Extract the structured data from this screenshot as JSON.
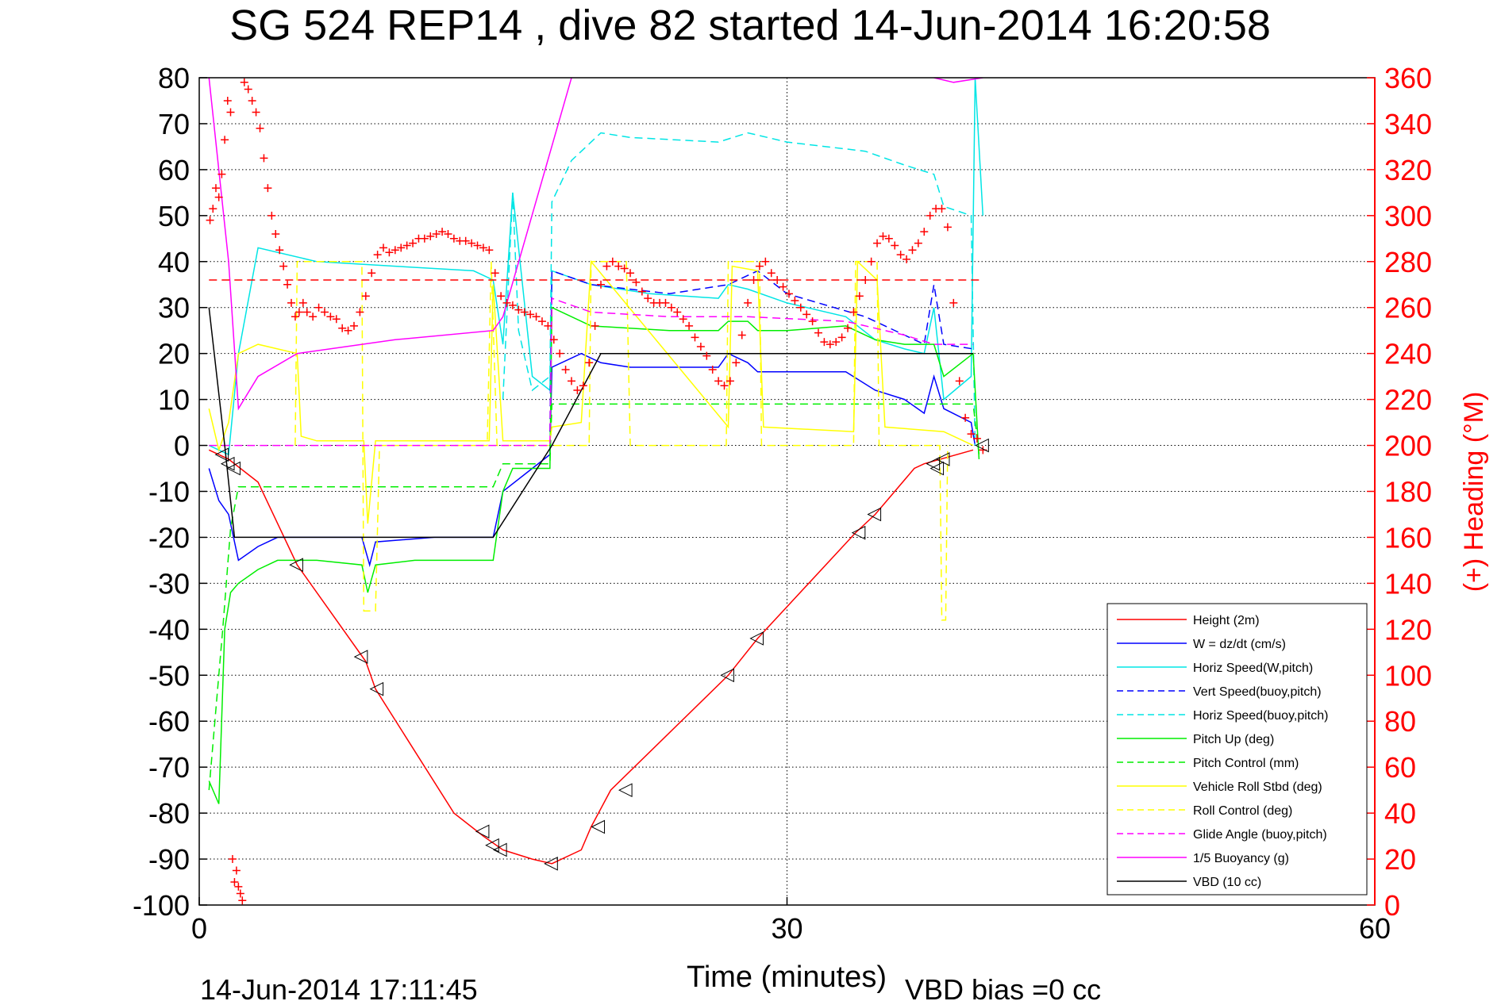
{
  "chart_data": {
    "type": "line",
    "title": "SG 524   REP14  , dive 82 started 14-Jun-2014 16:20:58",
    "xlabel": "Time (minutes)",
    "ylabel_right": "(+) Heading (°M)",
    "footer_left": "14-Jun-2014 17:11:45",
    "footer_right": "VBD bias =0 cc",
    "xlim": [
      0,
      60
    ],
    "ylim": [
      -100,
      80
    ],
    "ylim_right": [
      0,
      360
    ],
    "x_ticks": [
      "0",
      "30",
      "60"
    ],
    "y_ticks": [
      "80",
      "70",
      "60",
      "50",
      "40",
      "30",
      "20",
      "10",
      "0",
      "-10",
      "-20",
      "-30",
      "-40",
      "-50",
      "-60",
      "-70",
      "-80",
      "-90",
      "-100"
    ],
    "y_ticks_right": [
      "360",
      "340",
      "320",
      "300",
      "280",
      "260",
      "240",
      "220",
      "200",
      "180",
      "160",
      "140",
      "120",
      "100",
      "80",
      "60",
      "40",
      "20",
      "0"
    ],
    "grid": true,
    "legend_position": "bottom-right",
    "colors": {
      "red": "#ff0000",
      "blue": "#0000ff",
      "cyan": "#00e5e5",
      "green": "#00ee00",
      "yellow": "#ffff00",
      "magenta": "#ff00ff",
      "black": "#000000",
      "heading": "#ff0000"
    },
    "series": [
      {
        "name": "Height (2m)",
        "color": "#ff0000",
        "dash": false,
        "x": [
          0.5,
          1.5,
          3,
          5,
          8.5,
          9,
          13,
          14.5,
          15.5,
          17,
          18,
          19.5,
          20,
          21,
          27,
          28.5,
          33.5,
          34.5,
          36.5,
          37,
          39.5
        ],
        "y": [
          -1,
          -3,
          -8,
          -26,
          -47,
          -53,
          -80,
          -85,
          -88,
          -90,
          -91,
          -88,
          -83,
          -75,
          -50,
          -42,
          -19,
          -15,
          -5,
          -4,
          -1
        ]
      },
      {
        "name": "W = dz/dt (cm/s)",
        "color": "#0000ff",
        "dash": false,
        "x": [
          0.5,
          1,
          1.5,
          2,
          3,
          4,
          7,
          8.3,
          8.7,
          9,
          12,
          15,
          15.5,
          17,
          17.9,
          18,
          19.5,
          20.5,
          22,
          24,
          26.5,
          27,
          28,
          28.5,
          30,
          33,
          34.5,
          36,
          37,
          37.5,
          38,
          39.4,
          39.6
        ],
        "y": [
          -5,
          -12,
          -15,
          -25,
          -22,
          -20,
          -20,
          -20,
          -26,
          -21,
          -20,
          -20,
          -10,
          -5,
          -2,
          17,
          20,
          18,
          17,
          17,
          17,
          20,
          18,
          16,
          16,
          16,
          12,
          10,
          7,
          15,
          8,
          5,
          0
        ]
      },
      {
        "name": "Horiz Speed(W,pitch)",
        "color": "#00e5e5",
        "dash": false,
        "x": [
          0.5,
          1.5,
          2,
          3,
          6,
          10,
          14,
          15,
          15.5,
          16,
          17,
          17.9,
          18,
          20,
          23,
          26.5,
          27,
          28,
          30,
          33,
          34.5,
          36,
          37,
          37.5,
          38,
          39.4,
          39.6,
          40
        ],
        "y": [
          0,
          -2,
          20,
          43,
          40,
          39,
          38,
          36,
          22,
          55,
          15,
          12,
          38,
          35,
          33,
          32,
          35,
          34,
          31,
          28,
          23,
          21,
          20,
          30,
          10,
          15,
          80,
          50
        ]
      },
      {
        "name": "Vert Speed(buoy,pitch)",
        "color": "#0000ff",
        "dash": true,
        "x": [
          17.9,
          18,
          20,
          24,
          27,
          28.5,
          30,
          34,
          36,
          37,
          37.5,
          38,
          39.5
        ],
        "y": [
          3,
          38,
          35,
          33,
          35,
          38,
          33,
          28,
          24,
          22,
          35,
          22,
          21
        ]
      },
      {
        "name": "Horiz Speed(buoy,pitch)",
        "color": "#00e5e5",
        "dash": true,
        "x": [
          15.5,
          16,
          16.3,
          17,
          17.9,
          18,
          19,
          20.5,
          22,
          26.5,
          28,
          30,
          34,
          36,
          37.5,
          38,
          39.4,
          39.6
        ],
        "y": [
          10,
          55,
          25,
          12,
          15,
          53,
          62,
          68,
          67,
          66,
          68,
          66,
          64,
          61,
          59,
          52,
          50,
          0
        ]
      },
      {
        "name": "Pitch Up (deg)",
        "color": "#00ee00",
        "dash": false,
        "x": [
          0.5,
          1,
          1.3,
          1.6,
          2,
          3,
          4,
          6,
          8.3,
          8.6,
          9,
          11,
          15,
          15.5,
          16,
          17.9,
          18,
          20,
          24,
          26.5,
          27,
          28,
          28.5,
          30,
          33,
          34.5,
          36,
          37.5,
          38,
          39.5,
          39.8
        ],
        "y": [
          -73,
          -78,
          -40,
          -32,
          -30,
          -27,
          -25,
          -25,
          -26,
          -32,
          -26,
          -25,
          -25,
          -10,
          -5,
          -5,
          30,
          26,
          25,
          25,
          27,
          27,
          25,
          25,
          26,
          23,
          22,
          22,
          15,
          20,
          -3
        ]
      },
      {
        "name": "Pitch Control (mm)",
        "color": "#00ee00",
        "dash": true,
        "x": [
          0.5,
          1.2,
          1.6,
          2,
          15,
          15.5,
          17.9,
          18,
          20,
          39.5,
          39.8
        ],
        "y": [
          -75,
          -40,
          -18,
          -9,
          -9,
          -4,
          -4,
          9,
          9,
          9,
          -2
        ]
      },
      {
        "name": "Vehicle Roll Stbd (deg)",
        "color": "#ffff00",
        "dash": false,
        "x": [
          0.5,
          1,
          1.5,
          2,
          3,
          4,
          5,
          5.2,
          6,
          8.4,
          8.6,
          9,
          14.8,
          15,
          15.5,
          17.9,
          18,
          19.5,
          20,
          27,
          27.2,
          28.5,
          28.8,
          33.4,
          33.6,
          34.6,
          35,
          38,
          39.5
        ],
        "y": [
          8,
          -1,
          5,
          20,
          22,
          21,
          20,
          2,
          1,
          1,
          -17,
          1,
          1,
          35,
          1,
          1,
          4,
          5,
          40,
          4,
          39,
          38,
          4,
          3,
          40,
          36,
          4,
          3,
          0
        ]
      },
      {
        "name": "Roll Control (deg)",
        "color": "#ffff00",
        "dash": true,
        "x": [
          4.9,
          5,
          8.3,
          8.4,
          9,
          9.2,
          14.7,
          14.9,
          15.2,
          19.9,
          20,
          21.8,
          22,
          26.9,
          27,
          28.6,
          28.7,
          33.4,
          33.5,
          34.6,
          34.7,
          37.8,
          37.9,
          38.1,
          38.2
        ],
        "y": [
          0,
          40,
          40,
          -36,
          -36,
          0,
          0,
          40,
          0,
          0,
          40,
          40,
          0,
          0,
          40,
          40,
          0,
          0,
          40,
          40,
          0,
          0,
          -38,
          -38,
          0
        ]
      },
      {
        "name": "Glide Angle (buoy,pitch)",
        "color": "#ff00ff",
        "dash": true,
        "x": [
          0.5,
          17.9,
          18,
          20,
          24,
          28,
          33,
          36,
          37.5,
          39.5
        ],
        "y": [
          0,
          0,
          32,
          29,
          28,
          28,
          27,
          24,
          22,
          22
        ]
      },
      {
        "name": "1/5 Buoyancy (g)",
        "color": "#ff00ff",
        "dash": false,
        "x": [
          0.5,
          1.5,
          2,
          3,
          5,
          10,
          15,
          15.5,
          19
        ],
        "y": [
          80,
          40,
          8,
          15,
          20,
          23,
          25,
          28,
          80
        ]
      },
      {
        "name": "VBD (10 cc)",
        "color": "#000000",
        "dash": false,
        "x": [
          0.5,
          1.3,
          1.8,
          15,
          18,
          20.5,
          39.5
        ],
        "y": [
          30,
          0,
          -20,
          -20,
          0,
          20,
          20
        ]
      }
    ],
    "extra_lines": [
      {
        "color": "#ff0000",
        "dash": true,
        "x": [
          0.5,
          40
        ],
        "y": [
          36,
          36
        ]
      },
      {
        "color": "#ff00ff",
        "dash": false,
        "x": [
          37.5,
          38.5,
          40
        ],
        "y": [
          80,
          79,
          80
        ]
      }
    ],
    "heading": {
      "name": "(+) Heading",
      "color": "#ff0000",
      "marker": "+",
      "x": [
        0.55,
        0.7,
        0.85,
        1.0,
        1.15,
        1.3,
        1.45,
        1.6,
        1.7,
        1.8,
        1.9,
        2.0,
        2.1,
        2.2,
        2.3,
        2.5,
        2.7,
        2.9,
        3.1,
        3.3,
        3.5,
        3.7,
        3.9,
        4.1,
        4.3,
        4.5,
        4.7,
        4.9,
        5.1,
        5.3,
        5.5,
        5.8,
        6.1,
        6.4,
        6.7,
        7.0,
        7.3,
        7.6,
        7.9,
        8.2,
        8.5,
        8.8,
        9.1,
        9.4,
        9.7,
        10.0,
        10.3,
        10.6,
        10.9,
        11.2,
        11.5,
        11.8,
        12.1,
        12.4,
        12.7,
        13.0,
        13.3,
        13.6,
        13.9,
        14.2,
        14.5,
        14.8,
        15.1,
        15.4,
        15.7,
        16.0,
        16.3,
        16.6,
        16.9,
        17.2,
        17.5,
        17.8,
        18.1,
        18.4,
        18.7,
        19.0,
        19.3,
        19.6,
        19.9,
        20.2,
        20.5,
        20.8,
        21.1,
        21.4,
        21.7,
        22.0,
        22.3,
        22.6,
        22.9,
        23.2,
        23.5,
        23.8,
        24.1,
        24.4,
        24.7,
        25.0,
        25.3,
        25.6,
        25.9,
        26.2,
        26.5,
        26.8,
        27.1,
        27.4,
        27.7,
        28.0,
        28.3,
        28.6,
        28.9,
        29.2,
        29.5,
        29.8,
        30.1,
        30.4,
        30.7,
        31.0,
        31.3,
        31.6,
        31.9,
        32.2,
        32.5,
        32.8,
        33.1,
        33.4,
        33.7,
        34.0,
        34.3,
        34.6,
        34.9,
        35.2,
        35.5,
        35.8,
        36.1,
        36.4,
        36.7,
        37.0,
        37.3,
        37.6,
        37.9,
        38.2,
        38.5,
        38.8,
        39.1,
        39.4,
        39.7,
        40.0
      ],
      "y": [
        298,
        303,
        312,
        308,
        318,
        333,
        350,
        345,
        20,
        10,
        15,
        8,
        5,
        2,
        358,
        355,
        350,
        345,
        338,
        325,
        312,
        300,
        292,
        285,
        278,
        270,
        262,
        256,
        258,
        262,
        258,
        256,
        260,
        258,
        256,
        255,
        251,
        250,
        252,
        258,
        265,
        275,
        283,
        286,
        284,
        285,
        286,
        287,
        288,
        290,
        290,
        291,
        292,
        293,
        292,
        290,
        289,
        289,
        288,
        287,
        286,
        285,
        275,
        265,
        262,
        261,
        259,
        258,
        257,
        256,
        254,
        252,
        246,
        240,
        233,
        228,
        224,
        226,
        236,
        252,
        270,
        278,
        280,
        278,
        277,
        275,
        271,
        267,
        264,
        262,
        262,
        262,
        260,
        258,
        255,
        252,
        247,
        243,
        239,
        233,
        228,
        226,
        228,
        236,
        248,
        262,
        272,
        278,
        280,
        275,
        272,
        269,
        266,
        263,
        260,
        257,
        254,
        249,
        245,
        244,
        245,
        247,
        251,
        258,
        265,
        272,
        280,
        288,
        291,
        290,
        287,
        283,
        281,
        285,
        288,
        293,
        300,
        303,
        303,
        295,
        262,
        228,
        212,
        205,
        203,
        198
      ]
    },
    "markers": {
      "name": "dive markers",
      "shape": "triangle",
      "x": [
        1.2,
        1.5,
        1.8,
        5,
        8.3,
        9.1,
        14.5,
        15,
        15.4,
        18,
        20.4,
        21.8,
        27,
        28.5,
        33.7,
        34.5,
        37.5,
        37.7,
        38,
        40
      ],
      "y": [
        -2,
        -4,
        -5,
        -26,
        -46,
        -53,
        -84,
        -87,
        -88,
        -91,
        -83,
        -75,
        -50,
        -42,
        -19,
        -15,
        -4,
        -5,
        -3,
        0
      ]
    }
  }
}
